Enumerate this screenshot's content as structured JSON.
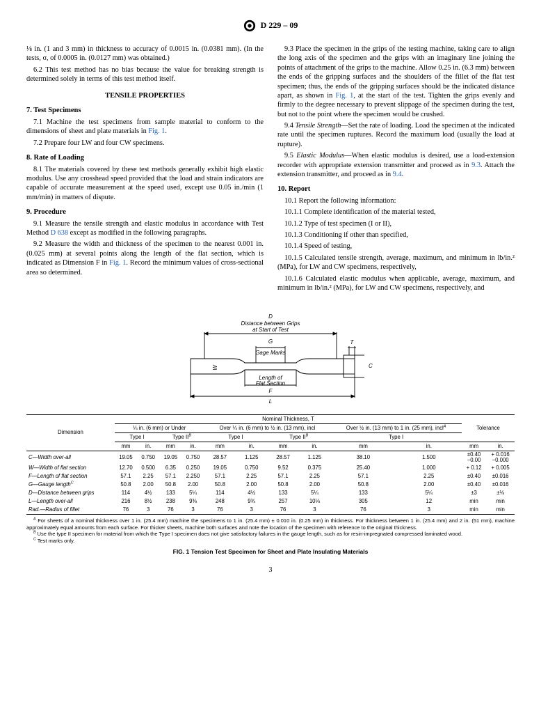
{
  "header": {
    "std": "D 229 – 09"
  },
  "col1": {
    "p1": "⅛ in. (1 and 3 mm) in thickness to accuracy of 0.0015 in. (0.0381 mm). (In the tests, σ, of 0.0005 in. (0.0127 mm) was obtained.)",
    "p2": "6.2 This test method has no bias because the value for breaking strength is determined solely in terms of this test method itself.",
    "h1": "TENSILE PROPERTIES",
    "h2": "7. Test Specimens",
    "p3a": "7.1 Machine the test specimens from sample material to conform to the dimensions of sheet and plate materials in ",
    "p3link": "Fig. 1",
    "p3b": ".",
    "p4": "7.2 Prepare four LW and four CW specimens.",
    "h3": "8. Rate of Loading",
    "p5": "8.1 The materials covered by these test methods generally exhibit high elastic modulus. Use any crosshead speed provided that the load and strain indicators are capable of accurate measurement at the speed used, except use 0.05 in./min (1 mm/min) in matters of dispute.",
    "h4": "9. Procedure",
    "p6a": "9.1 Measure the tensile strength and elastic modulus in accordance with Test Method ",
    "p6link": "D 638",
    "p6b": " except as modified in the following paragraphs.",
    "p7a": "9.2 Measure the width and thickness of the specimen to the nearest 0.001 in. (0.025 mm) at several points along the length of the flat section, which is indicated as Dimension F in ",
    "p7link": "Fig. 1",
    "p7b": ". Record the minimum values of cross-sectional area so determined."
  },
  "col2": {
    "p1a": "9.3 Place the specimen in the grips of the testing machine, taking care to align the long axis of the specimen and the grips with an imaginary line joining the points of attachment of the grips to the machine. Allow 0.25 in. (6.3 mm) between the ends of the gripping surfaces and the shoulders of the fillet of the flat test specimen; thus, the ends of the gripping surfaces should be the indicated distance apart, as shown in ",
    "p1link": "Fig. 1",
    "p1b": ", at the start of the test. Tighten the grips evenly and firmly to the degree necessary to prevent slippage of the specimen during the test, but not to the point where the specimen would be crushed.",
    "p2a": "9.4 ",
    "p2i": "Tensile Strength",
    "p2b": "—Set the rate of loading. Load the specimen at the indicated rate until the specimen ruptures. Record the maximum load (usually the load at rupture).",
    "p3a": "9.5 ",
    "p3i": "Elastic Modulus",
    "p3b": "—When elastic modulus is desired, use a load-extension recorder with appropriate extension transmitter and proceed as in ",
    "p3link1": "9.3",
    "p3c": ". Attach the extension transmitter, and proceed as in ",
    "p3link2": "9.4",
    "p3d": ".",
    "h1": "10. Report",
    "p4": "10.1 Report the following information:",
    "p5": "10.1.1 Complete identification of the material tested,",
    "p6": "10.1.2 Type of test specimen (I or II),",
    "p7": "10.1.3 Conditioning if other than specified,",
    "p8": "10.1.4 Speed of testing,",
    "p9": "10.1.5 Calculated tensile strength, average, maximum, and minimum in lb/in.² (MPa), for LW and CW specimens, respectively,",
    "p10": "10.1.6 Calculated elastic modulus when applicable, average, maximum, and minimum in lb/in.² (MPa), for LW and CW specimens, respectively, and"
  },
  "figure": {
    "labels": {
      "d": "D",
      "dist": "Distance between Grips\nat Start of Test",
      "g": "G",
      "gage": "Gage Marks",
      "length": "Length of\nFlat Section",
      "f": "F",
      "l": "L",
      "t": "T",
      "c": "C",
      "w": "W"
    }
  },
  "table": {
    "title": "Nominal Thickness, T",
    "colgroups": [
      "¼ in. (6 mm) or Under",
      "Over ¼  in. (6 mm) to ½ in. (13 mm), incl",
      "Over ½ in. (13 mm) to 1 in. (25 mm), incl"
    ],
    "dim": "Dimension",
    "tol": "Tolerance",
    "types": [
      "Type I",
      "Type II",
      "Type I",
      "Type II",
      "Type I"
    ],
    "sup": "B",
    "supA": "A",
    "units": [
      "mm",
      "in.",
      "mm",
      "in.",
      "mm",
      "in.",
      "mm",
      "in.",
      "mm",
      "in.",
      "mm",
      "in."
    ],
    "rows": [
      {
        "name": "C—Width over-all",
        "v": [
          "19.05",
          "0.750",
          "19.05",
          "0.750",
          "28.57",
          "1.125",
          "28.57",
          "1.125",
          "38.10",
          "1.500",
          "±0.40\n−0.00",
          "+ 0.016\n−0.000"
        ]
      },
      {
        "name": "W—Width of flat section",
        "v": [
          "12.70",
          "0.500",
          "6.35",
          "0.250",
          "19.05",
          "0.750",
          "9.52",
          "0.375",
          "25.40",
          "1.000",
          "+ 0.12",
          "+ 0.005"
        ]
      },
      {
        "name": "F—Length of flat section",
        "v": [
          "57.1",
          "2.25",
          "57.1",
          "2.250",
          "57.1",
          "2.25",
          "57.1",
          "2.25",
          "57.1",
          "2.25",
          "±0.40",
          "±0.016"
        ]
      },
      {
        "name": "G—Gauge length",
        "sup": "C",
        "v": [
          "50.8",
          "2.00",
          "50.8",
          "2.00",
          "50.8",
          "2.00",
          "50.8",
          "2.00",
          "50.8",
          "2.00",
          "±0.40",
          "±0.016"
        ]
      },
      {
        "name": "D—Distance between grips",
        "v": [
          "114",
          "4½",
          "133",
          "5¼",
          "114",
          "4½",
          "133",
          "5¼",
          "133",
          "5¼",
          "±3",
          "±⅛"
        ]
      },
      {
        "name": "L—Length over-all",
        "v": [
          "216",
          "8½",
          "238",
          "9⅜",
          "248",
          "9¾",
          "257",
          "10⅛",
          "305",
          "12",
          "min",
          "min"
        ]
      },
      {
        "name": "Rad.—Radius of fillet",
        "v": [
          "76",
          "3",
          "76",
          "3",
          "76",
          "3",
          "76",
          "3",
          "76",
          "3",
          "min",
          "min"
        ]
      }
    ]
  },
  "footnotes": {
    "a": " For sheets of a nominal thickness over 1 in. (25.4 mm) machine the specimens to 1 in. (25.4 mm) ± 0.010 in. (0.25 mm) in thickness. For thickness between 1 in. (25.4 mm) and 2 in. (51 mm), machine approximately equal amounts from each surface. For thicker sheets, machine both surfaces and note the location of the specimen with reference to the original thickness.",
    "b": " Use the type II specimen for material from which the Type I specimen does not give satisfactory failures in the gauge length, such as for resin-impregnated compressed laminated wood.",
    "c": " Test marks only."
  },
  "figcap": "FIG. 1 Tension Test Specimen for Sheet and Plate Insulating Materials",
  "pagenum": "3"
}
